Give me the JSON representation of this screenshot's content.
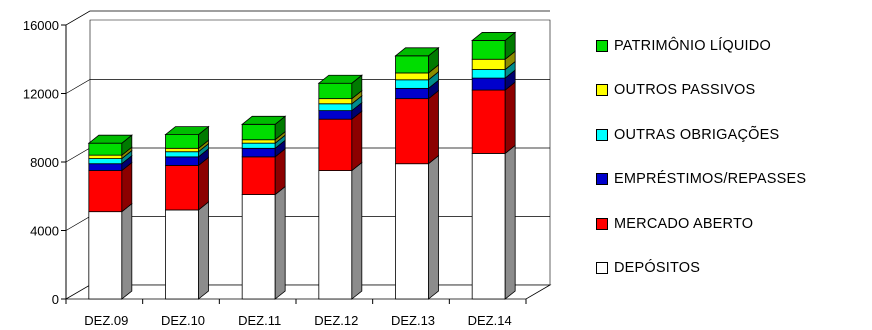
{
  "chart_data": {
    "type": "bar",
    "stacked": true,
    "three_d": true,
    "categories": [
      "DEZ.09",
      "DEZ.10",
      "DEZ.11",
      "DEZ.12",
      "DEZ.13",
      "DEZ.14"
    ],
    "series": [
      {
        "name": "DEPÓSITOS",
        "color": "#ffffff",
        "values": [
          5100,
          5200,
          6100,
          7500,
          7900,
          8500
        ]
      },
      {
        "name": "MERCADO ABERTO",
        "color": "#ff0000",
        "values": [
          2400,
          2600,
          2200,
          3000,
          3800,
          3700
        ]
      },
      {
        "name": "EMPRÉSTIMOS/REPASSES",
        "color": "#0000cc",
        "values": [
          400,
          500,
          500,
          500,
          600,
          700
        ]
      },
      {
        "name": "OUTRAS OBRIGAÇÕES",
        "color": "#00ffff",
        "values": [
          300,
          300,
          300,
          400,
          500,
          500
        ]
      },
      {
        "name": "OUTROS PASSIVOS",
        "color": "#ffff00",
        "values": [
          200,
          200,
          200,
          300,
          400,
          600
        ]
      },
      {
        "name": "PATRIMÔNIO LÍQUIDO",
        "color": "#00dd00",
        "values": [
          700,
          800,
          900,
          900,
          1000,
          1100
        ]
      }
    ],
    "yticks": [
      "0",
      "4000",
      "8000",
      "12000",
      "16000"
    ],
    "ylim": [
      0,
      16000
    ],
    "grid": true,
    "legend_position": "right",
    "title": "",
    "xlabel": "",
    "ylabel": ""
  }
}
